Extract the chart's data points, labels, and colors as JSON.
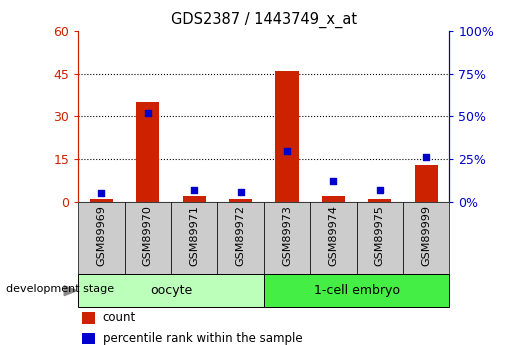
{
  "title": "GDS2387 / 1443749_x_at",
  "samples": [
    "GSM89969",
    "GSM89970",
    "GSM89971",
    "GSM89972",
    "GSM89973",
    "GSM89974",
    "GSM89975",
    "GSM89999"
  ],
  "counts": [
    1,
    35,
    2,
    1,
    46,
    2,
    1,
    13
  ],
  "percentile_ranks": [
    5,
    52,
    7,
    6,
    30,
    12,
    7,
    26
  ],
  "groups": [
    {
      "label": "oocyte",
      "start": 0,
      "end": 4,
      "color": "#bbffbb"
    },
    {
      "label": "1-cell embryo",
      "start": 4,
      "end": 8,
      "color": "#44ee44"
    }
  ],
  "left_ylim": [
    0,
    60
  ],
  "right_ylim": [
    0,
    100
  ],
  "left_yticks": [
    0,
    15,
    30,
    45,
    60
  ],
  "right_yticks": [
    0,
    25,
    50,
    75,
    100
  ],
  "left_axis_color": "#cc2200",
  "right_axis_color": "#0000cc",
  "bar_color": "#cc2200",
  "dot_color": "#0000cc",
  "grid_color": "#000000",
  "background_color": "#ffffff",
  "legend_count_color": "#cc2200",
  "legend_percentile_color": "#0000cc",
  "xlabel_stage": "development stage",
  "bar_width": 0.5,
  "dot_size": 25,
  "xticklabel_gray": "#cccccc"
}
